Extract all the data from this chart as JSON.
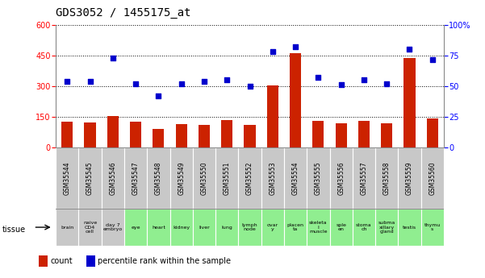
{
  "title": "GDS3052 / 1455175_at",
  "samples": [
    "GSM35544",
    "GSM35545",
    "GSM35546",
    "GSM35547",
    "GSM35548",
    "GSM35549",
    "GSM35550",
    "GSM35551",
    "GSM35552",
    "GSM35553",
    "GSM35554",
    "GSM35555",
    "GSM35556",
    "GSM35557",
    "GSM35558",
    "GSM35559",
    "GSM35560"
  ],
  "tissues": [
    "brain",
    "naive\nCD4\ncell",
    "day 7\nembryо",
    "eye",
    "heart",
    "kidney",
    "liver",
    "lung",
    "lymph\nnode",
    "ovar\ny",
    "placen\nta",
    "skeleta\nl\nmuscle",
    "sple\nen",
    "stoma\nch",
    "subma\nxillary\ngland",
    "testis",
    "thymu\ns"
  ],
  "tissue_colors": [
    "#c8c8c8",
    "#c8c8c8",
    "#c8c8c8",
    "#90ee90",
    "#90ee90",
    "#90ee90",
    "#90ee90",
    "#90ee90",
    "#90ee90",
    "#90ee90",
    "#90ee90",
    "#90ee90",
    "#90ee90",
    "#90ee90",
    "#90ee90",
    "#90ee90",
    "#90ee90"
  ],
  "counts": [
    125,
    120,
    155,
    125,
    90,
    115,
    112,
    135,
    110,
    305,
    460,
    130,
    118,
    128,
    118,
    440,
    140
  ],
  "percentiles": [
    54,
    54,
    73,
    52,
    42,
    52,
    54,
    55,
    50,
    78,
    82,
    57,
    51,
    55,
    52,
    80,
    72
  ],
  "bar_color": "#cc2200",
  "dot_color": "#0000cc",
  "left_ylim": [
    0,
    600
  ],
  "right_ylim": [
    0,
    100
  ],
  "left_yticks": [
    0,
    150,
    300,
    450,
    600
  ],
  "right_yticks": [
    0,
    25,
    50,
    75,
    100
  ],
  "right_yticklabels": [
    "0",
    "25",
    "50",
    "75",
    "100%"
  ],
  "bar_width": 0.5,
  "background_color": "#ffffff",
  "plot_bg_color": "#ffffff",
  "title_fontsize": 10,
  "tick_fontsize": 7,
  "gsm_cell_color": "#c8c8c8",
  "border_color": "#888888"
}
